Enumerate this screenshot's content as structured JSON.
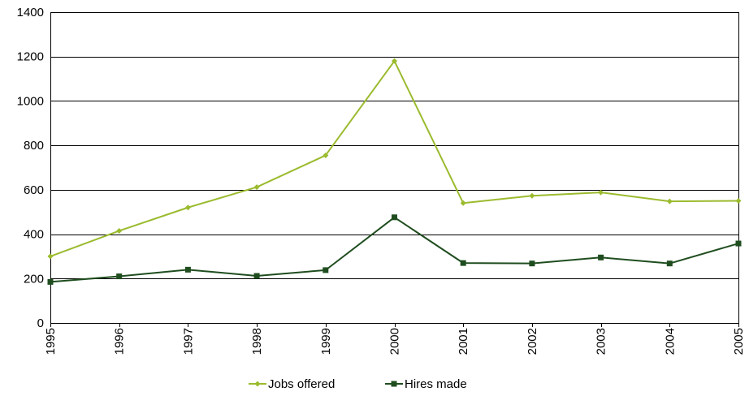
{
  "chart_data": {
    "type": "line",
    "title": "",
    "xlabel": "",
    "ylabel": "",
    "categories": [
      "1995",
      "1996",
      "1997",
      "1998",
      "1999",
      "2000",
      "2001",
      "2002",
      "2003",
      "2004",
      "2005"
    ],
    "ylim": [
      0,
      1400
    ],
    "yticks": [
      0,
      200,
      400,
      600,
      800,
      1000,
      1200,
      1400
    ],
    "grid": true,
    "legend_position": "bottom",
    "series": [
      {
        "name": "Jobs offered",
        "color": "#9BBB2E",
        "marker": "diamond",
        "values": [
          300,
          415,
          520,
          612,
          755,
          1180,
          540,
          573,
          588,
          548,
          550
        ]
      },
      {
        "name": "Hires made",
        "color": "#1F4D1F",
        "marker": "square",
        "values": [
          185,
          210,
          240,
          212,
          238,
          476,
          270,
          268,
          295,
          268,
          358
        ]
      }
    ]
  }
}
